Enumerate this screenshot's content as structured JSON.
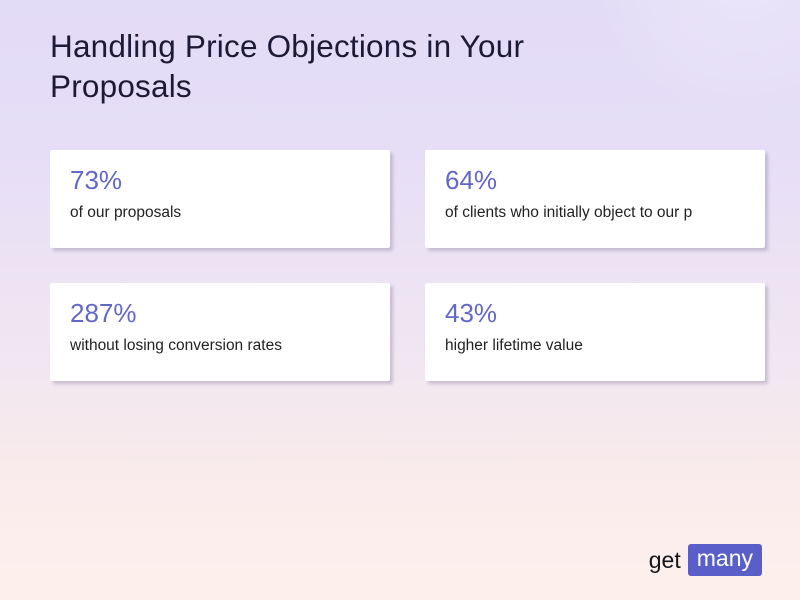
{
  "slide": {
    "title": "Handling Price Objections in Your Proposals",
    "stats": [
      {
        "value": "73%",
        "label": "of our proposals"
      },
      {
        "value": "64%",
        "label": "of clients who initially object to our p"
      },
      {
        "value": "287%",
        "label": "without losing conversion rates"
      },
      {
        "value": "43%",
        "label": "higher lifetime value"
      }
    ],
    "logo": {
      "prefix": "get",
      "suffix": "many"
    },
    "colors": {
      "accent": "#5a5ec9",
      "stat_value": "#6367c6",
      "title_text": "#1d1a38",
      "body_text": "#222222",
      "card_bg": "#ffffff",
      "bg_top": "#e3dcf7",
      "bg_bottom": "#fdf0ec"
    }
  }
}
